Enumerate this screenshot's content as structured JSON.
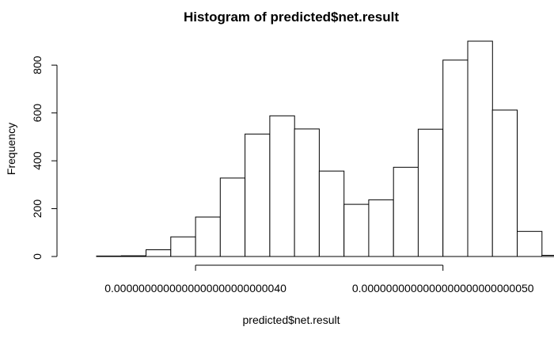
{
  "chart_data": {
    "type": "bar",
    "title": "Histogram of predicted$net.result",
    "xlabel": "predicted$net.result",
    "ylabel": "Frequency",
    "x_ticks": [
      {
        "value": 4e-27,
        "label": "0.0000000000000000000000000040"
      },
      {
        "value": 5e-27,
        "label": "0.0000000000000000000000000050"
      }
    ],
    "y_ticks": [
      0,
      200,
      400,
      600,
      800
    ],
    "xlim": [
      3.44e-27,
      5.34e-27
    ],
    "ylim": [
      0,
      900
    ],
    "bin_width": 1e-28,
    "bins": [
      {
        "start": 3.6e-27,
        "end": 3.7e-27,
        "count": 2
      },
      {
        "start": 3.7e-27,
        "end": 3.8e-27,
        "count": 3
      },
      {
        "start": 3.8e-27,
        "end": 3.9e-27,
        "count": 28
      },
      {
        "start": 3.9e-27,
        "end": 4e-27,
        "count": 82
      },
      {
        "start": 4e-27,
        "end": 4.1e-27,
        "count": 165
      },
      {
        "start": 4.1e-27,
        "end": 4.2e-27,
        "count": 328
      },
      {
        "start": 4.2e-27,
        "end": 4.3e-27,
        "count": 512
      },
      {
        "start": 4.3e-27,
        "end": 4.4e-27,
        "count": 588
      },
      {
        "start": 4.4e-27,
        "end": 4.5e-27,
        "count": 533
      },
      {
        "start": 4.5e-27,
        "end": 4.6e-27,
        "count": 357
      },
      {
        "start": 4.6e-27,
        "end": 4.7e-27,
        "count": 218
      },
      {
        "start": 4.7e-27,
        "end": 4.8e-27,
        "count": 237
      },
      {
        "start": 4.8e-27,
        "end": 4.9e-27,
        "count": 373
      },
      {
        "start": 4.9e-27,
        "end": 5e-27,
        "count": 532
      },
      {
        "start": 5e-27,
        "end": 5.1e-27,
        "count": 821
      },
      {
        "start": 5.1e-27,
        "end": 5.2e-27,
        "count": 900
      },
      {
        "start": 5.2e-27,
        "end": 5.3e-27,
        "count": 612
      },
      {
        "start": 5.3e-27,
        "end": 5.4e-27,
        "count": 105
      },
      {
        "start": 5.4e-27,
        "end": 5.5e-27,
        "count": 5
      }
    ],
    "bar_fill": "#ffffff",
    "bar_stroke": "#000000",
    "grid": false,
    "legend": "none"
  }
}
